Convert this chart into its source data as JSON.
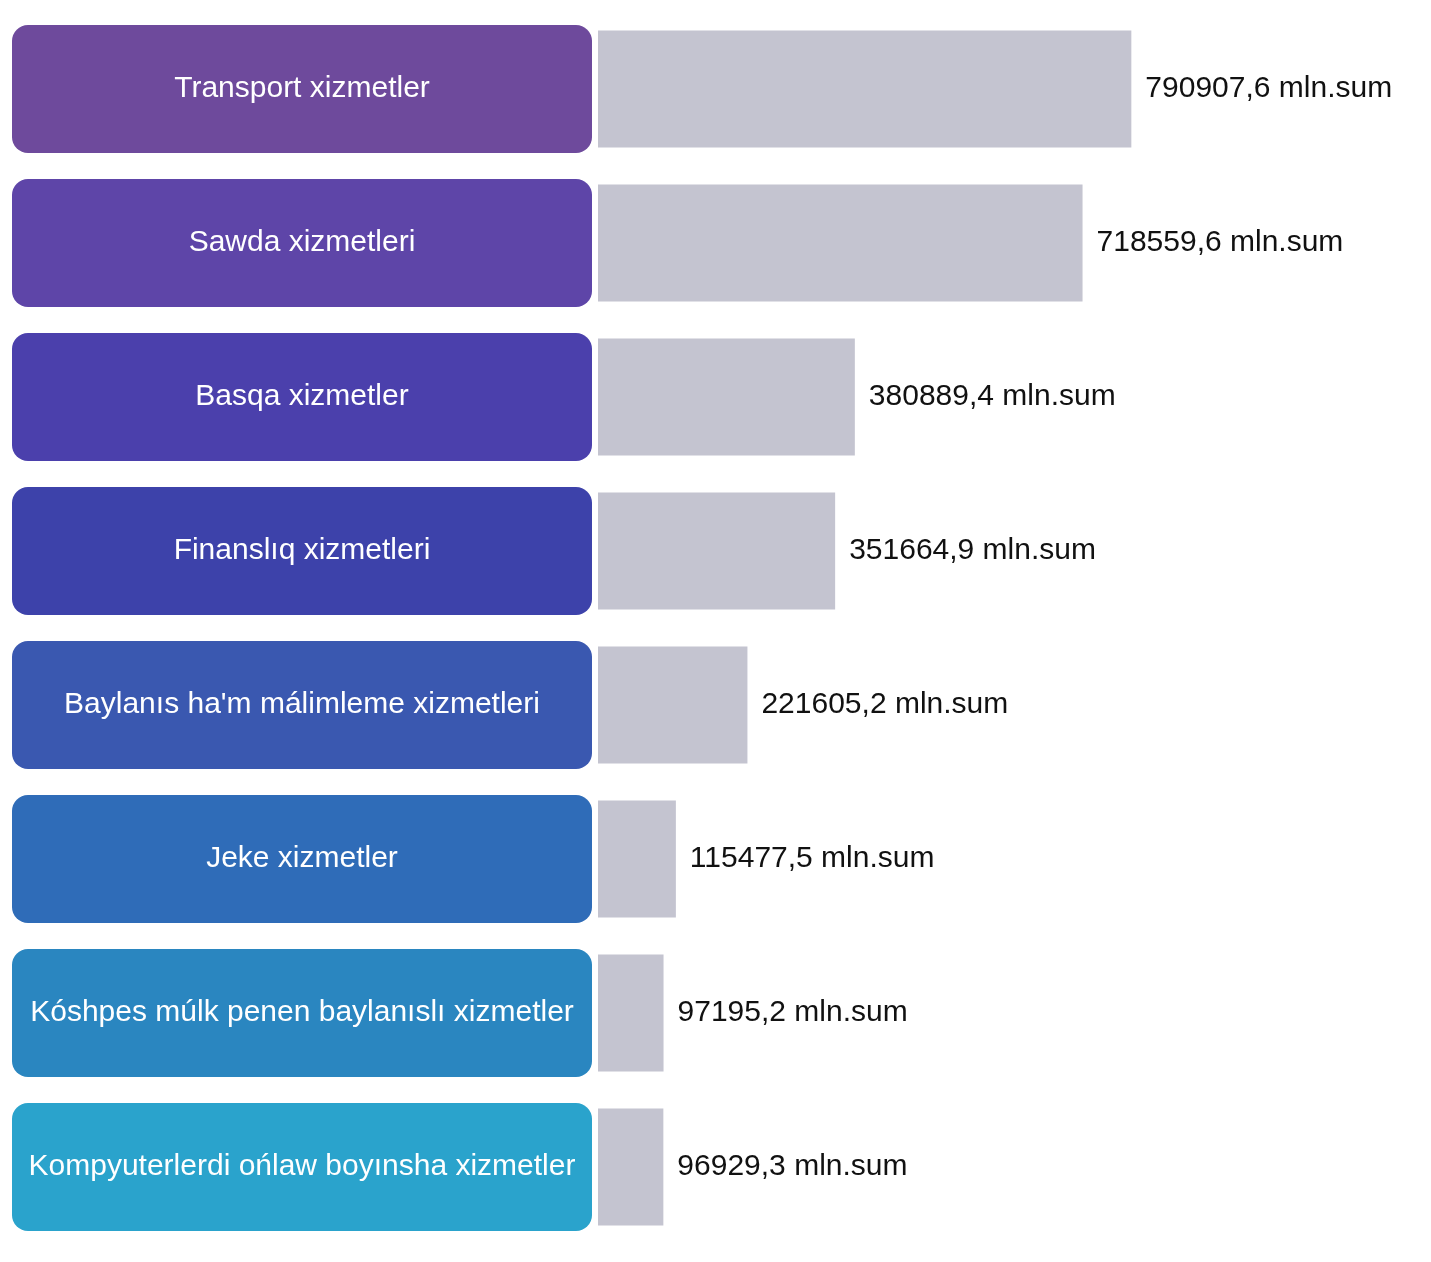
{
  "chart_data": {
    "type": "bar",
    "orientation": "horizontal",
    "categories": [
      "Transport xizmetler",
      "Sawda xizmetleri",
      "Basqa xizmetler",
      "Finanslıq xizmetleri",
      "Baylanıs ha'm málimleme xizmetleri",
      "Jeke xizmetler",
      "Kóshpes múlk penen baylanıslı xizmetler",
      "Kompyuterlerdi ońlaw boyınsha xizmetler"
    ],
    "values": [
      790907.6,
      718559.6,
      380889.4,
      351664.9,
      221605.2,
      115477.5,
      97195.2,
      96929.3
    ],
    "value_labels": [
      "790907,6 mln.sum",
      "718559,6 mln.sum",
      "380889,4 mln.sum",
      "351664,9 mln.sum",
      "221605,2 mln.sum",
      "115477,5 mln.sum",
      "97195,2 mln.sum",
      "96929,3 mln.sum"
    ],
    "color": "#c4c4d0",
    "legend": false
  }
}
